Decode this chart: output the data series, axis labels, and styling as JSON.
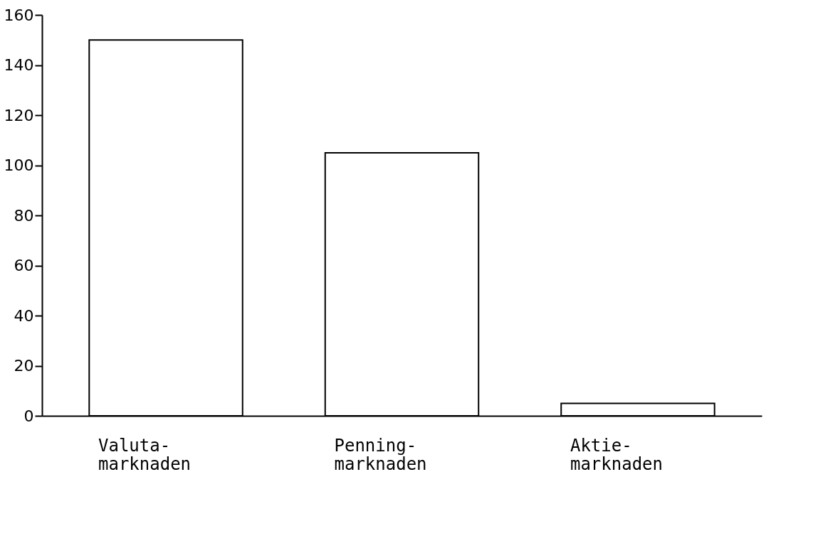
{
  "chart_data": {
    "type": "bar",
    "categories": [
      "Valuta-\nmarknaden",
      "Penning-\nmarknaden",
      "Aktie-\nmarknaden"
    ],
    "values": [
      150,
      105,
      5
    ],
    "color": "#000000",
    "ylim": [
      0,
      160
    ],
    "yticks": [
      0,
      20,
      40,
      60,
      80,
      100,
      120,
      140,
      160
    ],
    "grid": false,
    "legend": false
  }
}
